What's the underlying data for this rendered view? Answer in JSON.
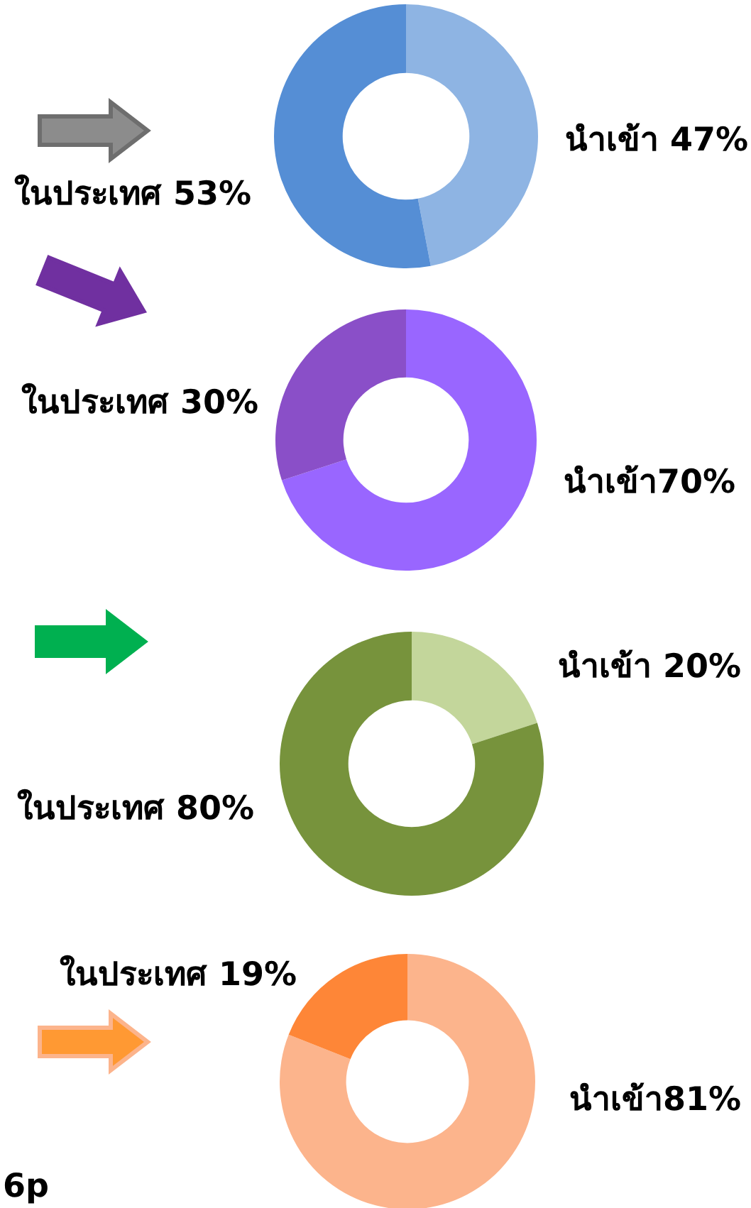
{
  "chart_data": [
    {
      "type": "donut",
      "categories": [
        "นำเข้า ",
        "ในประเทศ "
      ],
      "values": [
        47,
        53
      ],
      "value_labels": [
        "47%",
        "53%"
      ],
      "colors": [
        "#8eb4e3",
        "#558ed5"
      ],
      "legend": false
    },
    {
      "type": "donut",
      "categories": [
        "นำเข้า",
        "ในประเทศ "
      ],
      "values": [
        70,
        30
      ],
      "value_labels": [
        "70%",
        "30%"
      ],
      "colors": [
        "#9966ff",
        "#8a4fc8"
      ],
      "legend": false
    },
    {
      "type": "donut",
      "categories": [
        "นำเข้า ",
        "ในประเทศ "
      ],
      "values": [
        20,
        80
      ],
      "value_labels": [
        "20%",
        "80%"
      ],
      "colors": [
        "#c3d69b",
        "#77933c"
      ],
      "legend": false
    },
    {
      "type": "donut",
      "categories": [
        "นำเข้า",
        "ในประเทศ "
      ],
      "values": [
        81,
        19
      ],
      "value_labels": [
        "81%",
        "19%"
      ],
      "colors": [
        "#fcb48c",
        "#fe8637"
      ],
      "legend": false,
      "annotations": [
        "6p"
      ]
    }
  ]
}
